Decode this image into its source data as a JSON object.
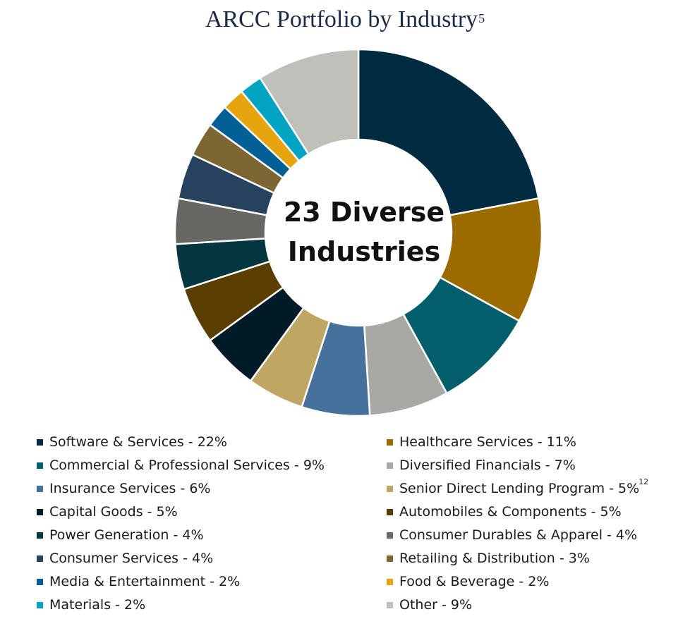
{
  "title": {
    "text": "ARCC Portfolio by Industry",
    "superscript": "5"
  },
  "center_label": {
    "line1": "23 Diverse",
    "line2": "Industries"
  },
  "chart_data": {
    "type": "pie",
    "donut": true,
    "title": "ARCC Portfolio by Industry",
    "units": "%",
    "legend_position": "bottom",
    "slices": [
      {
        "label": "Software & Services - 22%",
        "name": "Software & Services",
        "value": 22,
        "color": "#002b41"
      },
      {
        "label": "Healthcare Services - 11%",
        "name": "Healthcare Services",
        "value": 11,
        "color": "#9b6b00"
      },
      {
        "label": "Commercial & Professional Services - 9%",
        "name": "Commercial & Professional Services",
        "value": 9,
        "color": "#035e6c"
      },
      {
        "label": "Diversified Financials - 7%",
        "name": "Diversified Financials",
        "value": 7,
        "color": "#a8a9a4"
      },
      {
        "label": "Insurance Services - 6%",
        "name": "Insurance Services",
        "value": 6,
        "color": "#45719c"
      },
      {
        "label": "Senior Direct Lending Program - 5%",
        "name": "Senior Direct Lending Program",
        "value": 5,
        "color": "#bfa663",
        "superscript": "12"
      },
      {
        "label": "Capital Goods - 5%",
        "name": "Capital Goods",
        "value": 5,
        "color": "#001a28"
      },
      {
        "label": "Automobiles & Components - 5%",
        "name": "Automobiles & Components",
        "value": 5,
        "color": "#5a3e00"
      },
      {
        "label": "Power Generation - 4%",
        "name": "Power Generation",
        "value": 4,
        "color": "#03363f"
      },
      {
        "label": "Consumer Durables & Apparel - 4%",
        "name": "Consumer Durables & Apparel",
        "value": 4,
        "color": "#676863"
      },
      {
        "label": "Consumer Services - 4%",
        "name": "Consumer Services",
        "value": 4,
        "color": "#26425f"
      },
      {
        "label": "Retailing & Distribution - 3%",
        "name": "Retailing & Distribution",
        "value": 3,
        "color": "#7d6633"
      },
      {
        "label": "Media & Entertainment - 2%",
        "name": "Media & Entertainment",
        "value": 2,
        "color": "#006096"
      },
      {
        "label": "Food & Beverage - 2%",
        "name": "Food & Beverage",
        "value": 2,
        "color": "#e6a50e"
      },
      {
        "label": "Materials - 2%",
        "name": "Materials",
        "value": 2,
        "color": "#00a4c2"
      },
      {
        "label": "Other - 9%",
        "name": "Other",
        "value": 9,
        "color": "#c0c0bb"
      }
    ]
  }
}
